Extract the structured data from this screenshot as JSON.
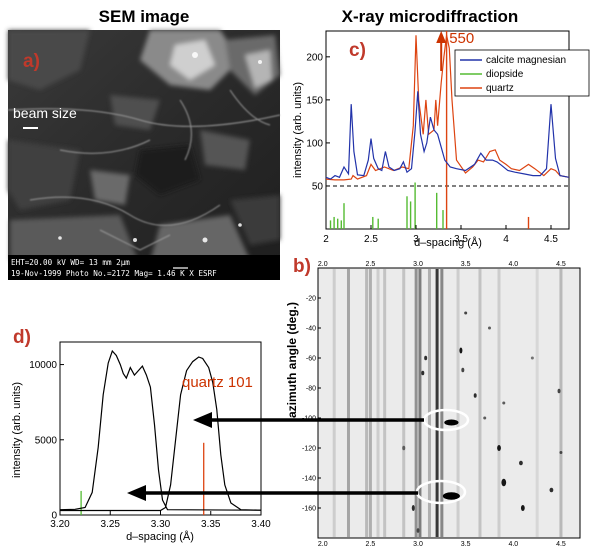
{
  "headers": {
    "left": "SEM image",
    "right": "X-ray microdiffraction"
  },
  "sem": {
    "panel_label": "a)",
    "beam_label": "beam size",
    "info_line1": "EHT=20.00 kV  WD=  13 mm      2μm",
    "info_line2": "19-Nov-1999   Photo No.=2172   Mag=  1.46 K X  ESRF"
  },
  "colors": {
    "calcite": "#2233aa",
    "diopside": "#55bb33",
    "quartz": "#dd4411",
    "panel_label": "#c0392b",
    "annotation": "#cc3300"
  },
  "chart_data": [
    {
      "id": "c",
      "type": "line",
      "panel_label": "c)",
      "xlabel": "d–spacing (Å)",
      "ylabel": "intensity (arb. units)",
      "xlim": [
        2,
        4.7
      ],
      "ylim": [
        0,
        230
      ],
      "xticks": [
        2,
        2.5,
        3,
        3.5,
        4,
        4.5
      ],
      "yticks": [
        50,
        100,
        150,
        200
      ],
      "legend_position": "top-right",
      "threshold_y": 50,
      "annotation": {
        "text": "550",
        "x": 3.28
      },
      "series": [
        {
          "name": "calcite magnesian",
          "color": "#2233aa",
          "points": [
            [
              2,
              60
            ],
            [
              2.05,
              58
            ],
            [
              2.1,
              62
            ],
            [
              2.15,
              60
            ],
            [
              2.2,
              72
            ],
            [
              2.25,
              64
            ],
            [
              2.28,
              145
            ],
            [
              2.31,
              90
            ],
            [
              2.35,
              63
            ],
            [
              2.42,
              62
            ],
            [
              2.47,
              80
            ],
            [
              2.5,
              105
            ],
            [
              2.53,
              82
            ],
            [
              2.58,
              70
            ],
            [
              2.62,
              68
            ],
            [
              2.66,
              90
            ],
            [
              2.7,
              72
            ],
            [
              2.76,
              68
            ],
            [
              2.82,
              70
            ],
            [
              2.86,
              78
            ],
            [
              2.9,
              66
            ],
            [
              2.95,
              70
            ],
            [
              2.99,
              115
            ],
            [
              3.02,
              160
            ],
            [
              3.05,
              110
            ],
            [
              3.09,
              90
            ],
            [
              3.12,
              100
            ],
            [
              3.16,
              130
            ],
            [
              3.2,
              115
            ],
            [
              3.24,
              110
            ],
            [
              3.28,
              95
            ],
            [
              3.32,
              80
            ],
            [
              3.38,
              72
            ],
            [
              3.45,
              70
            ],
            [
              3.55,
              68
            ],
            [
              3.65,
              75
            ],
            [
              3.72,
              88
            ],
            [
              3.78,
              80
            ],
            [
              3.85,
              80
            ],
            [
              3.9,
              78
            ],
            [
              3.95,
              74
            ],
            [
              4.02,
              68
            ],
            [
              4.1,
              66
            ],
            [
              4.2,
              64
            ],
            [
              4.3,
              62
            ],
            [
              4.38,
              62
            ],
            [
              4.45,
              70
            ],
            [
              4.5,
              145
            ],
            [
              4.55,
              82
            ],
            [
              4.6,
              62
            ],
            [
              4.7,
              60
            ]
          ]
        },
        {
          "name": "diopside",
          "color": "#55bb33",
          "sticks": [
            [
              2.05,
              10
            ],
            [
              2.09,
              14
            ],
            [
              2.13,
              12
            ],
            [
              2.17,
              10
            ],
            [
              2.2,
              30
            ],
            [
              2.52,
              14
            ],
            [
              2.58,
              12
            ],
            [
              2.9,
              38
            ],
            [
              2.94,
              32
            ],
            [
              2.99,
              54
            ],
            [
              3.23,
              42
            ],
            [
              3.3,
              22
            ]
          ]
        },
        {
          "name": "quartz",
          "color": "#dd4411",
          "points": [
            [
              2,
              58
            ],
            [
              2.1,
              57
            ],
            [
              2.2,
              57
            ],
            [
              2.28,
              58
            ],
            [
              2.3,
              62
            ],
            [
              2.35,
              58
            ],
            [
              2.45,
              62
            ],
            [
              2.5,
              75
            ],
            [
              2.55,
              68
            ],
            [
              2.65,
              72
            ],
            [
              2.75,
              68
            ],
            [
              2.85,
              72
            ],
            [
              2.92,
              70
            ],
            [
              2.97,
              120
            ],
            [
              3,
              225
            ],
            [
              3.03,
              150
            ],
            [
              3.08,
              110
            ],
            [
              3.11,
              150
            ],
            [
              3.14,
              110
            ],
            [
              3.2,
              115
            ],
            [
              3.22,
              150
            ],
            [
              3.24,
              120
            ],
            [
              3.28,
              170
            ],
            [
              3.31,
              200
            ],
            [
              3.34,
              225
            ],
            [
              3.37,
              210
            ],
            [
              3.4,
              150
            ],
            [
              3.45,
              80
            ],
            [
              3.55,
              65
            ],
            [
              3.63,
              72
            ],
            [
              3.69,
              80
            ],
            [
              3.75,
              78
            ],
            [
              3.82,
              90
            ],
            [
              3.88,
              92
            ],
            [
              3.93,
              80
            ],
            [
              4.0,
              75
            ],
            [
              4.06,
              70
            ],
            [
              4.15,
              68
            ],
            [
              4.25,
              75
            ],
            [
              4.32,
              70
            ],
            [
              4.42,
              62
            ],
            [
              4.5,
              70
            ],
            [
              4.55,
              68
            ],
            [
              4.6,
              62
            ],
            [
              4.7,
              60
            ]
          ],
          "sticks": [
            [
              3.34,
              230
            ],
            [
              4.25,
              14
            ]
          ]
        }
      ]
    },
    {
      "id": "d",
      "type": "line",
      "panel_label": "d)",
      "xlabel": "d–spacing (Å)",
      "ylabel": "intensity (arb. units)",
      "xlim": [
        3.2,
        3.4
      ],
      "ylim": [
        0,
        11500
      ],
      "xticks": [
        3.2,
        3.25,
        3.3,
        3.35,
        3.4
      ],
      "yticks": [
        0,
        5000,
        10000
      ],
      "annotation": {
        "text": "quartz 101"
      },
      "series": [
        {
          "name": "profile upper",
          "color": "#000000",
          "points": [
            [
              3.2,
              350
            ],
            [
              3.215,
              380
            ],
            [
              3.225,
              500
            ],
            [
              3.232,
              1500
            ],
            [
              3.238,
              4500
            ],
            [
              3.243,
              8000
            ],
            [
              3.248,
              10100
            ],
            [
              3.252,
              10900
            ],
            [
              3.256,
              10600
            ],
            [
              3.26,
              10000
            ],
            [
              3.263,
              9400
            ],
            [
              3.266,
              9100
            ],
            [
              3.27,
              9800
            ],
            [
              3.274,
              9300
            ],
            [
              3.278,
              9600
            ],
            [
              3.282,
              9900
            ],
            [
              3.286,
              9300
            ],
            [
              3.29,
              8500
            ],
            [
              3.294,
              6000
            ],
            [
              3.298,
              3000
            ],
            [
              3.302,
              1000
            ],
            [
              3.307,
              350
            ],
            [
              3.4,
              320
            ]
          ]
        },
        {
          "name": "profile lower",
          "color": "#000000",
          "points": [
            [
              3.2,
              300
            ],
            [
              3.3,
              300
            ],
            [
              3.305,
              500
            ],
            [
              3.31,
              2000
            ],
            [
              3.315,
              5000
            ],
            [
              3.32,
              8000
            ],
            [
              3.326,
              9600
            ],
            [
              3.332,
              10200
            ],
            [
              3.338,
              10500
            ],
            [
              3.342,
              10400
            ],
            [
              3.348,
              9800
            ],
            [
              3.352,
              8800
            ],
            [
              3.356,
              7000
            ],
            [
              3.36,
              4000
            ],
            [
              3.364,
              2000
            ],
            [
              3.37,
              800
            ],
            [
              3.38,
              350
            ],
            [
              3.4,
              320
            ]
          ]
        }
      ],
      "sticks": [
        {
          "x": 3.221,
          "y": 1600,
          "color": "#55bb33"
        },
        {
          "x": 3.343,
          "y": 4800,
          "color": "#dd4411"
        }
      ]
    },
    {
      "id": "b",
      "type": "heatmap",
      "panel_label": "b)",
      "ylabel": "azimuth angle (deg.)",
      "xlim": [
        1.95,
        4.7
      ],
      "ylim": [
        -180,
        0
      ],
      "xticks": [
        2.0,
        2.5,
        3.0,
        3.5,
        4.0,
        4.5
      ],
      "yticks": [
        -20,
        -40,
        -60,
        -80,
        -100,
        -120,
        -140,
        -160
      ],
      "spots": [
        {
          "x": 3.35,
          "y": -103,
          "w": 0.15,
          "h": 4,
          "v": 1
        },
        {
          "x": 3.35,
          "y": -152,
          "w": 0.18,
          "h": 5,
          "v": 1
        },
        {
          "x": 3.45,
          "y": -55,
          "w": 0.03,
          "h": 4,
          "v": 0.9
        },
        {
          "x": 3.47,
          "y": -68,
          "w": 0.03,
          "h": 3,
          "v": 0.7
        },
        {
          "x": 3.5,
          "y": -30,
          "w": 0.02,
          "h": 2,
          "v": 0.7
        },
        {
          "x": 3.6,
          "y": -85,
          "w": 0.03,
          "h": 3,
          "v": 0.8
        },
        {
          "x": 3.85,
          "y": -120,
          "w": 0.04,
          "h": 4,
          "v": 0.9
        },
        {
          "x": 3.9,
          "y": -143,
          "w": 0.05,
          "h": 5,
          "v": 0.9
        },
        {
          "x": 4.08,
          "y": -130,
          "w": 0.04,
          "h": 3,
          "v": 0.8
        },
        {
          "x": 4.1,
          "y": -160,
          "w": 0.04,
          "h": 4,
          "v": 0.9
        },
        {
          "x": 4.4,
          "y": -148,
          "w": 0.04,
          "h": 3,
          "v": 0.8
        },
        {
          "x": 4.48,
          "y": -82,
          "w": 0.03,
          "h": 3,
          "v": 0.7
        },
        {
          "x": 4.5,
          "y": -123,
          "w": 0.03,
          "h": 2,
          "v": 0.7
        },
        {
          "x": 3.05,
          "y": -70,
          "w": 0.03,
          "h": 3,
          "v": 0.8
        },
        {
          "x": 3.08,
          "y": -60,
          "w": 0.03,
          "h": 3,
          "v": 0.8
        },
        {
          "x": 2.95,
          "y": -160,
          "w": 0.03,
          "h": 4,
          "v": 0.8
        },
        {
          "x": 3.0,
          "y": -175,
          "w": 0.03,
          "h": 3,
          "v": 0.7
        },
        {
          "x": 3.9,
          "y": -90,
          "w": 0.03,
          "h": 2,
          "v": 0.6
        },
        {
          "x": 3.75,
          "y": -40,
          "w": 0.03,
          "h": 2,
          "v": 0.6
        },
        {
          "x": 2.85,
          "y": -120,
          "w": 0.02,
          "h": 3,
          "v": 0.6
        },
        {
          "x": 3.7,
          "y": -100,
          "w": 0.03,
          "h": 2,
          "v": 0.6
        },
        {
          "x": 4.2,
          "y": -60,
          "w": 0.03,
          "h": 2,
          "v": 0.5
        }
      ],
      "rings": [
        {
          "x": 2.12,
          "v": 0.15
        },
        {
          "x": 2.27,
          "v": 0.35
        },
        {
          "x": 2.46,
          "v": 0.25
        },
        {
          "x": 2.5,
          "v": 0.3
        },
        {
          "x": 2.58,
          "v": 0.15
        },
        {
          "x": 2.65,
          "v": 0.2
        },
        {
          "x": 2.85,
          "v": 0.2
        },
        {
          "x": 2.98,
          "v": 0.45
        },
        {
          "x": 3.02,
          "v": 0.55
        },
        {
          "x": 3.12,
          "v": 0.3
        },
        {
          "x": 3.2,
          "v": 0.9
        },
        {
          "x": 3.25,
          "v": 0.5
        },
        {
          "x": 3.42,
          "v": 0.15
        },
        {
          "x": 3.65,
          "v": 0.2
        },
        {
          "x": 3.85,
          "v": 0.15
        },
        {
          "x": 4.25,
          "v": 0.1
        },
        {
          "x": 4.5,
          "v": 0.25
        }
      ]
    }
  ]
}
